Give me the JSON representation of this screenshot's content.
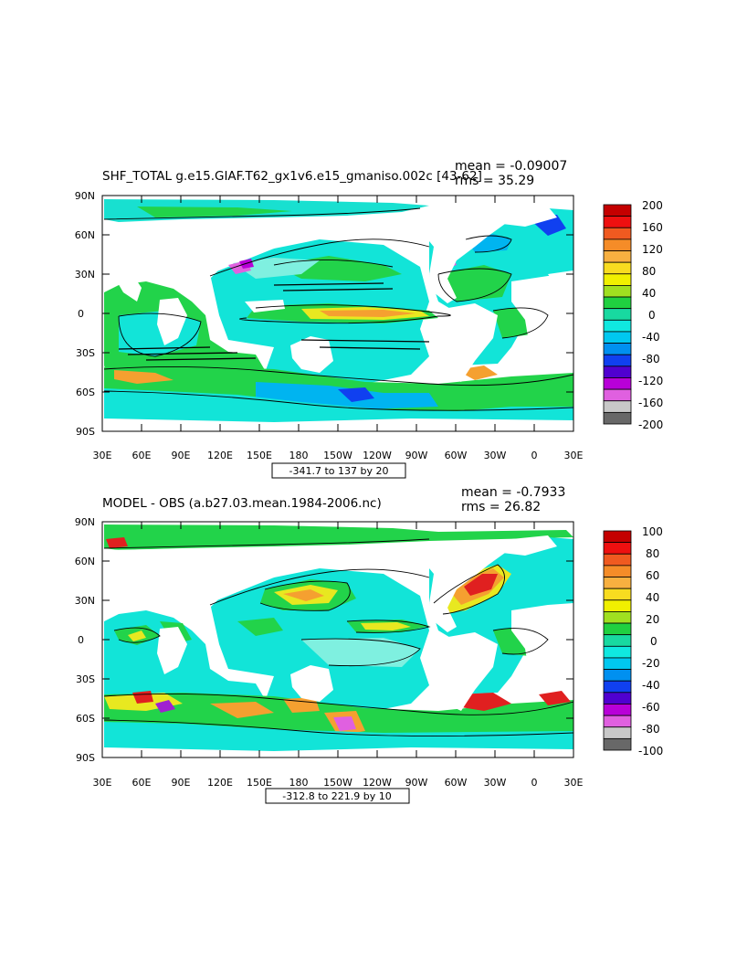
{
  "panels": [
    {
      "title": "SHF_TOTAL g.e15.GIAF.T62_gx1v6.e15_gmaniso.002c [43-62]",
      "mean_label": "mean = -0.09007",
      "rms_label": "rms = 35.29",
      "range_label": "-341.7 to 137 by 20",
      "lat_ticks": [
        "90N",
        "60N",
        "30N",
        "0",
        "30S",
        "60S",
        "90S"
      ],
      "lon_ticks": [
        "30E",
        "60E",
        "90E",
        "120E",
        "150E",
        "180",
        "150W",
        "120W",
        "90W",
        "60W",
        "30W",
        "0",
        "30E"
      ],
      "colorbar_labels": [
        "200",
        "160",
        "120",
        "80",
        "40",
        "0",
        "-40",
        "-80",
        "-120",
        "-160",
        "-200"
      ],
      "colorbar_colors": [
        "#c40000",
        "#ee1010",
        "#f05a20",
        "#f58c28",
        "#f8b040",
        "#f8dc20",
        "#f0f000",
        "#a0e020",
        "#20d040",
        "#18d9a0",
        "#10e8e0",
        "#00c8f0",
        "#0090f0",
        "#1040f0",
        "#5000d0",
        "#b800d8",
        "#e060e0",
        "#c8c8c8",
        "#686868"
      ]
    },
    {
      "title": "MODEL - OBS (a.b27.03.mean.1984-2006.nc)",
      "mean_label": "mean = -0.7933",
      "rms_label": "rms = 26.82",
      "range_label": "-312.8 to 221.9 by 10",
      "lat_ticks": [
        "90N",
        "60N",
        "30N",
        "0",
        "30S",
        "60S",
        "90S"
      ],
      "lon_ticks": [
        "30E",
        "60E",
        "90E",
        "120E",
        "150E",
        "180",
        "150W",
        "120W",
        "90W",
        "60W",
        "30W",
        "0",
        "30E"
      ],
      "colorbar_labels": [
        "100",
        "80",
        "60",
        "40",
        "20",
        "0",
        "-20",
        "-40",
        "-60",
        "-80",
        "-100"
      ],
      "colorbar_colors": [
        "#c40000",
        "#ee1010",
        "#f05a20",
        "#f58c28",
        "#f8b040",
        "#f8dc20",
        "#f0f000",
        "#a0e020",
        "#20d040",
        "#18d9a0",
        "#10e8e0",
        "#00c8f0",
        "#0090f0",
        "#1040f0",
        "#5000d0",
        "#b800d8",
        "#e060e0",
        "#c8c8c8",
        "#686868"
      ]
    }
  ],
  "colors": {
    "ocean_green": "#22d34a",
    "ocean_cyan": "#12e4d8",
    "ocean_light": "#7ff0e0",
    "ocean_blue": "#00b4f0",
    "warm_yellow": "#e8e820",
    "warm_orange": "#f5a030",
    "hot_red": "#e02020",
    "violet": "#a020d0",
    "land": "#ffffff"
  }
}
